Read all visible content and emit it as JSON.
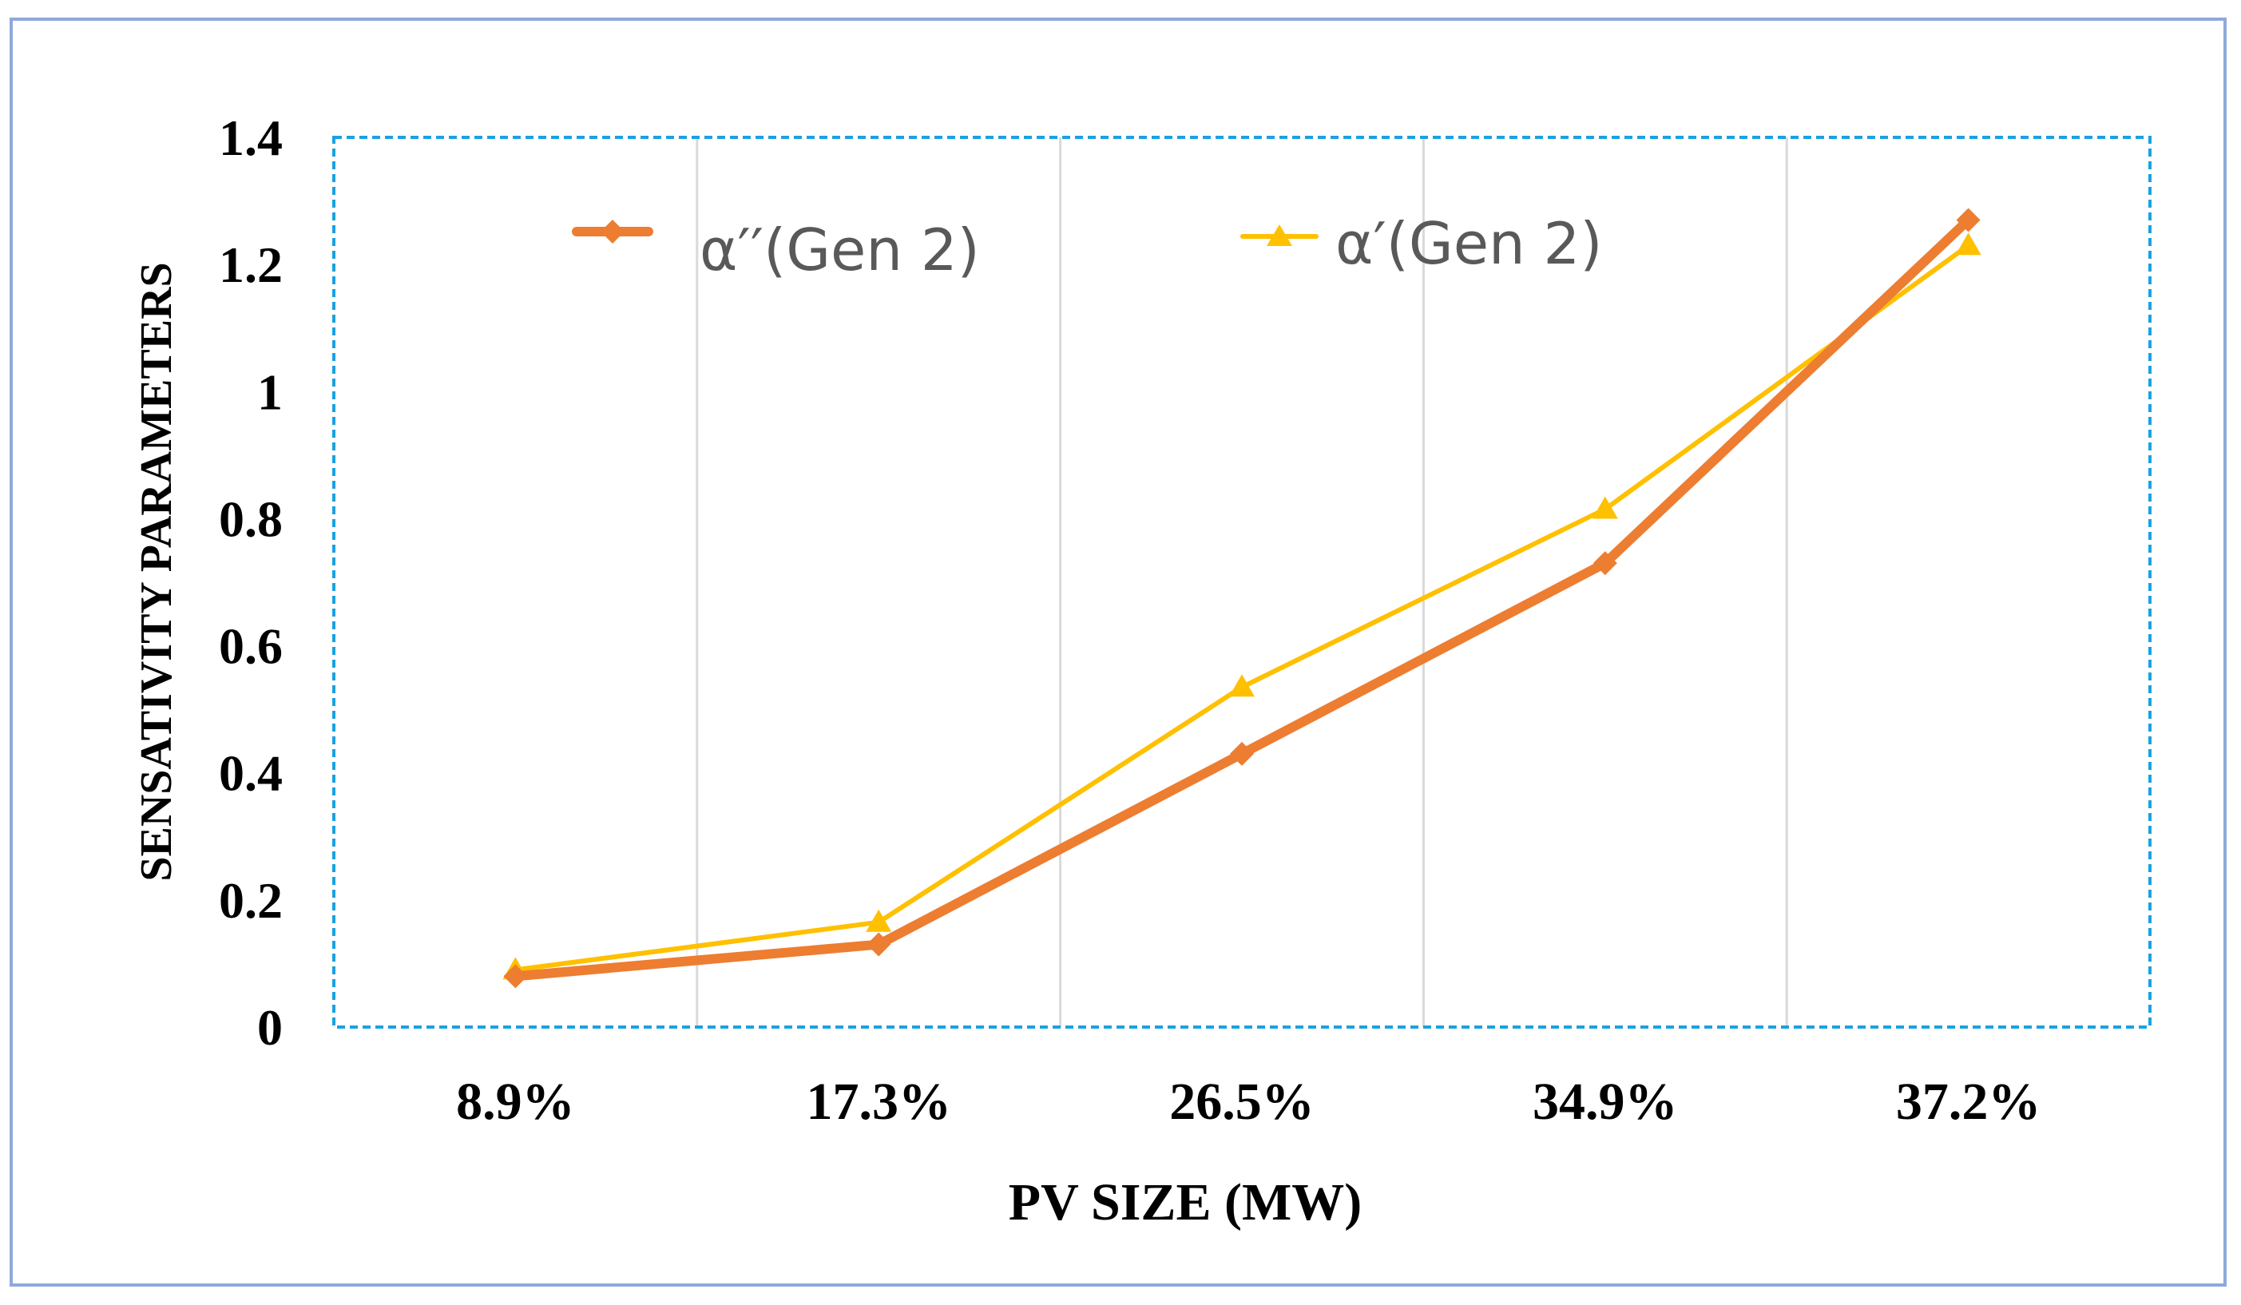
{
  "chart_data": {
    "type": "line",
    "title": "",
    "xlabel": "PV SIZE (MW)",
    "ylabel": "SENSATIVITY PARAMETERS",
    "categories": [
      "8.9%",
      "17.3%",
      "26.5%",
      "34.9%",
      "37.2%"
    ],
    "ylim": [
      0,
      1.4
    ],
    "yticks": [
      "0",
      "0.2",
      "0.4",
      "0.6",
      "0.8",
      "1",
      "1.2",
      "1.4"
    ],
    "grid": "vertical",
    "legend_position": "top-left",
    "series": [
      {
        "name": "α′′(Gen 2)",
        "color": "#ED7D31",
        "marker": "diamond",
        "values": [
          0.08,
          0.13,
          0.43,
          0.73,
          1.27
        ]
      },
      {
        "name": "α′(Gen 2)",
        "color": "#FFC000",
        "marker": "triangle",
        "values": [
          0.09,
          0.165,
          0.535,
          0.815,
          1.23
        ]
      }
    ]
  },
  "colors": {
    "frame_border": "#8EA9DB",
    "plot_border": "#1BA1E2",
    "gridline": "#D9D9D9"
  }
}
